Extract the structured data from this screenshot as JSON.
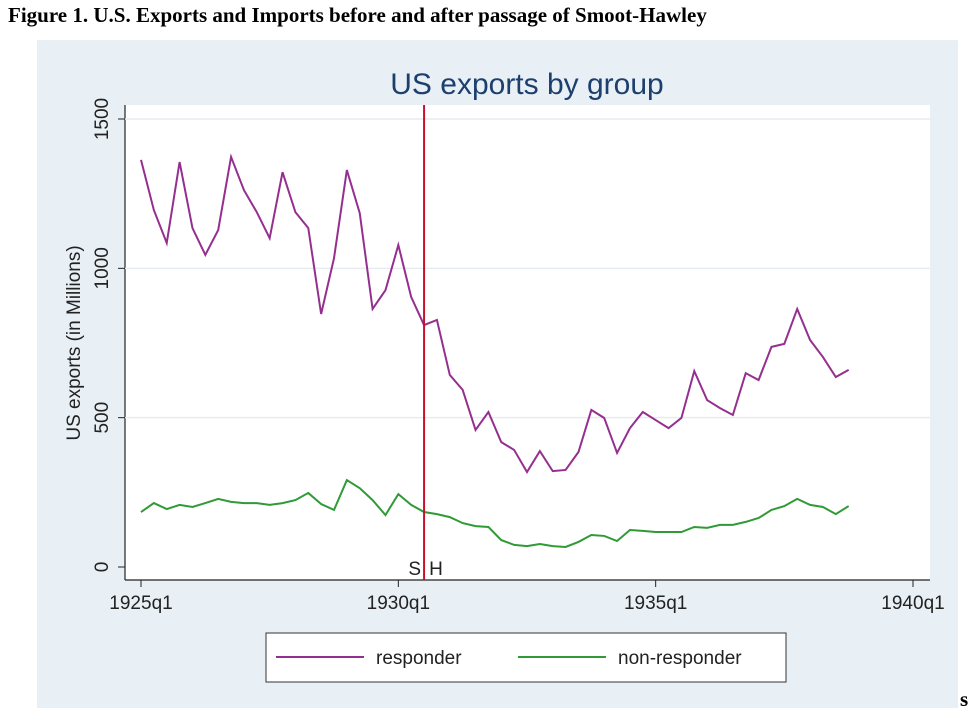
{
  "caption": "Figure 1. U.S. Exports and Imports before and after passage of Smoot-Hawley",
  "footer_fragment": "s",
  "chart_data": {
    "type": "line",
    "title": "US exports by group",
    "y_label": "US exports (in Millions)",
    "x": [
      -140,
      -139,
      -138,
      -137,
      -136,
      -135,
      -134,
      -133,
      -132,
      -131,
      -130,
      -129,
      -128,
      -127,
      -126,
      -125,
      -124,
      -123,
      -122,
      -121,
      -120,
      -119,
      -118,
      -117,
      -116,
      -115,
      -114,
      -113,
      -112,
      -111,
      -110,
      -109,
      -108,
      -107,
      -106,
      -105,
      -104,
      -103,
      -102,
      -101,
      -100,
      -99,
      -98,
      -97,
      -96,
      -95,
      -94,
      -93,
      -92,
      -91,
      -90,
      -89,
      -88,
      -87,
      -86,
      -85
    ],
    "series": [
      {
        "name": "responder",
        "color": "#952f8f",
        "values": [
          1363,
          1195,
          1085,
          1356,
          1135,
          1045,
          1128,
          1373,
          1262,
          1188,
          1101,
          1322,
          1188,
          1135,
          847,
          1034,
          1329,
          1185,
          864,
          927,
          1078,
          904,
          810,
          827,
          643,
          593,
          459,
          519,
          418,
          392,
          318,
          388,
          321,
          325,
          385,
          526,
          499,
          382,
          465,
          519,
          492,
          465,
          499,
          656,
          559,
          532,
          509,
          649,
          626,
          737,
          747,
          864,
          760,
          703,
          636,
          660
        ]
      },
      {
        "name": "non-responder",
        "color": "#2f9a36",
        "values": [
          184,
          214,
          194,
          208,
          201,
          214,
          228,
          218,
          214,
          214,
          208,
          214,
          224,
          248,
          211,
          191,
          291,
          264,
          224,
          174,
          244,
          208,
          184,
          177,
          167,
          147,
          137,
          134,
          90,
          74,
          70,
          77,
          70,
          67,
          84,
          107,
          104,
          87,
          124,
          121,
          117,
          117,
          117,
          134,
          131,
          141,
          141,
          151,
          164,
          191,
          204,
          228,
          208,
          201,
          177,
          204
        ]
      }
    ],
    "xlim": [
      -140,
      -80
    ],
    "xticks": [
      {
        "value": -140,
        "label": "1925q1"
      },
      {
        "value": -120,
        "label": "1930q1"
      },
      {
        "value": -100,
        "label": "1935q1"
      },
      {
        "value": -80,
        "label": "1940q1"
      }
    ],
    "ylim": [
      0,
      1500
    ],
    "yticks": [
      0,
      500,
      1000,
      1500
    ],
    "grid": true,
    "event_line": {
      "x": -118,
      "color": "#c8102e",
      "left_label": "S",
      "right_label": "H"
    },
    "legend": "bottom"
  }
}
